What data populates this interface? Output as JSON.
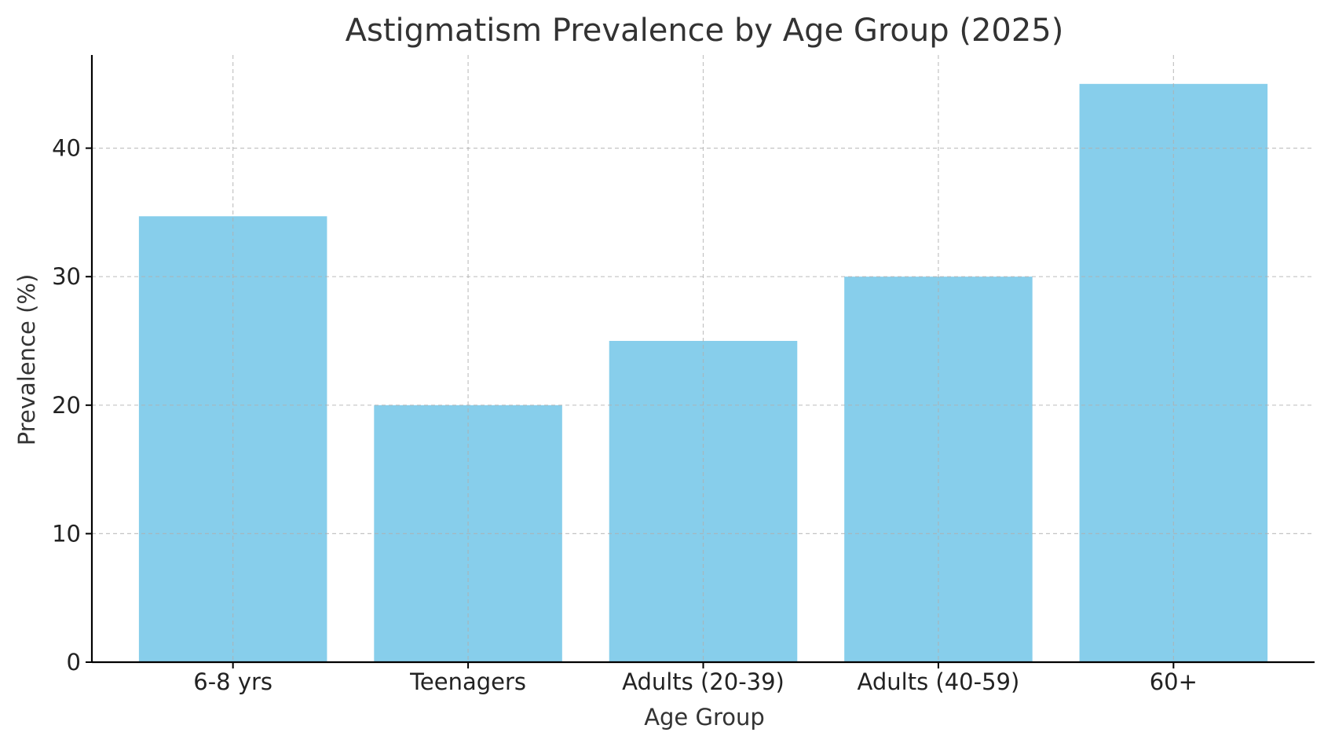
{
  "chart_data": {
    "type": "bar",
    "title": "Astigmatism Prevalence by Age Group (2025)",
    "xlabel": "Age Group",
    "ylabel": "Prevalence (%)",
    "categories": [
      "6-8 yrs",
      "Teenagers",
      "Adults (20-39)",
      "Adults (40-59)",
      "60+"
    ],
    "values": [
      34.7,
      20,
      25,
      30,
      45
    ],
    "ylim": [
      0,
      47.25
    ],
    "yticks": [
      0,
      10,
      20,
      30,
      40
    ],
    "grid": true,
    "bar_color": "#87CEEB",
    "grid_color": "#b0b0b0",
    "axis_color": "#000000"
  }
}
